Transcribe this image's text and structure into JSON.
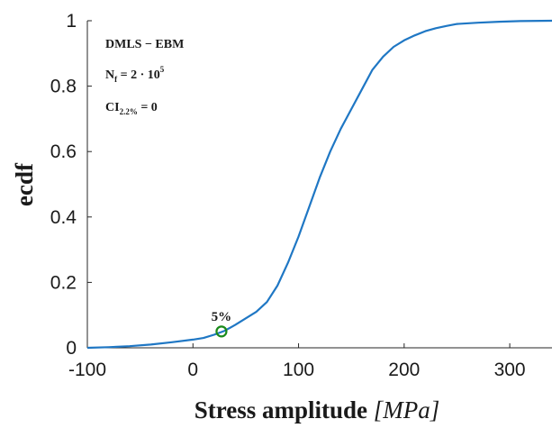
{
  "chart_data": {
    "type": "line",
    "title": "",
    "xlabel": "Stress amplitude",
    "xlabel_unit": "[MPa]",
    "ylabel": "ecdf",
    "xlim": [
      -100,
      340
    ],
    "ylim": [
      0,
      1
    ],
    "xticks": [
      -100,
      0,
      100,
      200,
      300
    ],
    "yticks": [
      0,
      0.2,
      0.4,
      0.6,
      0.8,
      1
    ],
    "xtick_labels": [
      "-100",
      "0",
      "100",
      "200",
      "300"
    ],
    "ytick_labels": [
      "0",
      "0.2",
      "0.4",
      "0.6",
      "0.8",
      "1"
    ],
    "grid": false,
    "series": [
      {
        "color": "#1f77c4",
        "x": [
          -100,
          -80,
          -60,
          -40,
          -20,
          0,
          10,
          20,
          30,
          40,
          50,
          60,
          70,
          80,
          90,
          100,
          110,
          120,
          130,
          140,
          150,
          160,
          170,
          180,
          190,
          200,
          210,
          220,
          230,
          240,
          250,
          270,
          290,
          310,
          340
        ],
        "y": [
          0.0,
          0.002,
          0.005,
          0.01,
          0.017,
          0.025,
          0.03,
          0.04,
          0.052,
          0.07,
          0.09,
          0.11,
          0.14,
          0.19,
          0.26,
          0.34,
          0.43,
          0.52,
          0.6,
          0.67,
          0.73,
          0.79,
          0.85,
          0.89,
          0.92,
          0.94,
          0.955,
          0.968,
          0.977,
          0.984,
          0.99,
          0.994,
          0.997,
          0.999,
          1.0
        ]
      }
    ],
    "marker": {
      "x": 27,
      "y": 0.05,
      "label": "5%",
      "color": "#1a8a1a"
    },
    "annotations": [
      {
        "main": "DMLS − EBM"
      },
      {
        "main": "N",
        "sub": "f",
        "rest": " = 2 · 10",
        "sup": "5"
      },
      {
        "main": "CI",
        "sub": "2.2%",
        "rest": " = 0"
      }
    ]
  }
}
